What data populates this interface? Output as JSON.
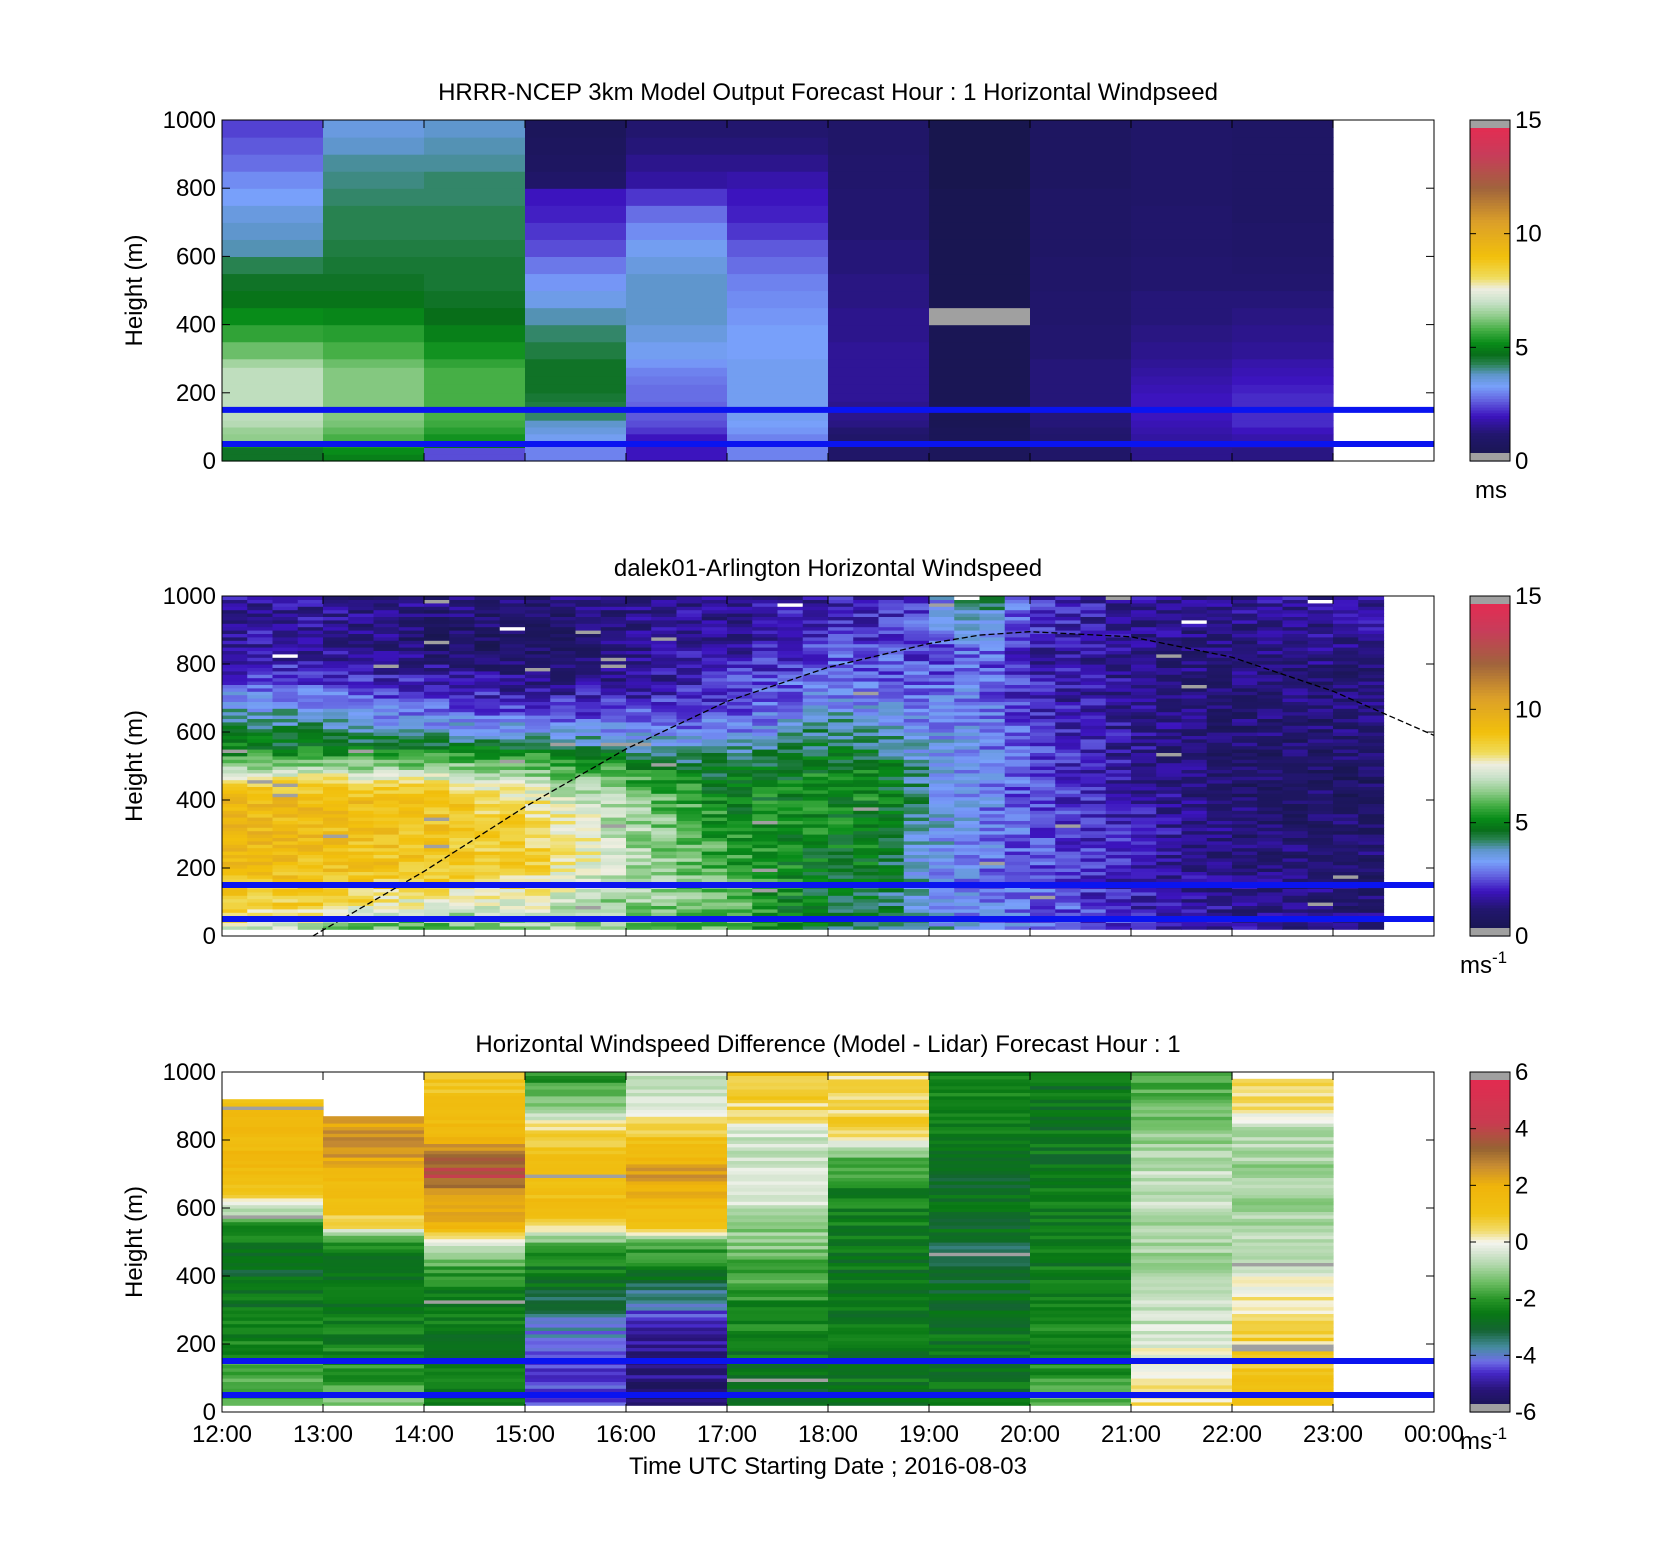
{
  "figure": {
    "xlabel": "Time UTC  Starting Date ; 2016-08-03",
    "xticks": [
      "12:00",
      "13:00",
      "14:00",
      "15:00",
      "16:00",
      "17:00",
      "18:00",
      "19:00",
      "20:00",
      "21:00",
      "22:00",
      "23:00",
      "00:00"
    ]
  },
  "colors": {
    "reference_lines": "#0a14f0",
    "solar_curve": "#000000",
    "missing_data": "#a0a0a0"
  },
  "chart_data": [
    {
      "type": "heatmap",
      "title": "HRRR-NCEP 3km Model Output   Forecast Hour : 1 Horizontal Windpseed",
      "xlabel": "",
      "ylabel": "Height (m)",
      "xlim": [
        12,
        24
      ],
      "ylim": [
        0,
        1000
      ],
      "yticks": [
        "0",
        "200",
        "400",
        "600",
        "800",
        "1000"
      ],
      "reference_lines_m": [
        150,
        50
      ],
      "colorbar": {
        "min": 0,
        "max": 15,
        "ticks": [
          "0",
          "5",
          "10",
          "15"
        ],
        "unit": "ms",
        "unit_sup": "",
        "palette": "speed"
      },
      "heights_m": [
        0,
        20,
        40,
        60,
        80,
        100,
        120,
        150,
        175,
        200,
        225,
        250,
        275,
        300,
        350,
        400,
        450,
        500,
        550,
        600,
        650,
        700,
        750,
        800,
        850,
        900,
        950,
        1000
      ],
      "hours_utc": [
        12,
        13,
        14,
        15,
        16,
        17,
        18,
        19,
        20,
        21,
        22
      ],
      "values": [
        [
          4.6,
          4.6,
          5.3,
          6.4,
          6.5,
          6.8,
          6.9,
          6.9,
          6.9,
          6.9,
          6.9,
          6.9,
          6.6,
          6.1,
          5.6,
          5.2,
          4.8,
          4.6,
          4.3,
          3.9,
          3.8,
          3.6,
          3.3,
          3.1,
          2.8,
          2.6,
          2.4
        ],
        [
          5.0,
          5.2,
          5.4,
          5.8,
          6.0,
          6.2,
          6.3,
          6.3,
          6.3,
          6.3,
          6.3,
          6.3,
          6.1,
          5.8,
          5.5,
          5.1,
          4.8,
          4.6,
          4.5,
          4.4,
          4.3,
          4.3,
          4.2,
          4.1,
          4.0,
          3.8,
          3.6
        ],
        [
          2.5,
          2.5,
          4.7,
          5.3,
          5.5,
          5.7,
          5.8,
          5.8,
          5.8,
          5.8,
          5.8,
          5.8,
          5.6,
          5.3,
          5.0,
          4.7,
          4.6,
          4.5,
          4.5,
          4.4,
          4.3,
          4.3,
          4.2,
          4.2,
          4.0,
          3.9,
          3.8
        ],
        [
          3.0,
          3.0,
          3.0,
          3.4,
          3.6,
          3.8,
          4.2,
          4.4,
          4.5,
          4.6,
          4.6,
          4.6,
          4.6,
          4.4,
          4.2,
          3.9,
          3.5,
          3.2,
          2.9,
          2.5,
          2.3,
          2.1,
          2.0,
          1.0,
          0.8,
          0.7,
          0.6
        ],
        [
          2.0,
          2.0,
          2.0,
          2.0,
          2.3,
          2.5,
          2.6,
          2.7,
          2.8,
          2.8,
          2.9,
          3.0,
          3.2,
          3.4,
          3.6,
          3.8,
          3.8,
          3.8,
          3.6,
          3.4,
          3.1,
          2.8,
          2.3,
          1.7,
          1.5,
          1.3,
          1.2
        ],
        [
          3.0,
          3.0,
          3.0,
          3.0,
          3.2,
          3.3,
          3.4,
          3.4,
          3.4,
          3.4,
          3.4,
          3.4,
          3.4,
          3.3,
          3.3,
          3.2,
          3.1,
          3.0,
          2.8,
          2.6,
          2.3,
          2.1,
          2.0,
          1.8,
          1.5,
          1.3,
          1.2
        ],
        [
          1.0,
          1.0,
          1.0,
          1.0,
          1.2,
          1.4,
          1.5,
          1.5,
          1.6,
          1.6,
          1.6,
          1.6,
          1.6,
          1.6,
          1.5,
          1.5,
          1.4,
          1.4,
          1.3,
          1.3,
          1.2,
          1.2,
          1.2,
          1.1,
          1.1,
          1.0,
          1.0
        ],
        [
          0.6,
          0.6,
          0.5,
          0.5,
          0.5,
          0.4,
          0.4,
          0.4,
          0.4,
          0.4,
          0.4,
          0.4,
          0.4,
          0.4,
          0.4,
          -1,
          0.3,
          0.3,
          0.3,
          0.3,
          0.3,
          0.3,
          0.3,
          0.2,
          0.2,
          0.2,
          0.2
        ],
        [
          1.0,
          1.0,
          1.0,
          1.1,
          1.2,
          1.3,
          1.3,
          1.3,
          1.3,
          1.3,
          1.3,
          1.3,
          1.3,
          1.2,
          1.2,
          1.1,
          1.1,
          1.0,
          1.0,
          0.9,
          0.9,
          0.9,
          0.9,
          0.8,
          0.8,
          0.8,
          0.8
        ],
        [
          1.5,
          1.5,
          1.6,
          1.7,
          1.8,
          1.9,
          2.0,
          2.0,
          2.0,
          1.9,
          1.8,
          1.7,
          1.6,
          1.5,
          1.4,
          1.3,
          1.3,
          1.2,
          1.2,
          1.1,
          1.1,
          1.1,
          1.0,
          1.0,
          1.0,
          1.0,
          1.0
        ],
        [
          1.4,
          1.4,
          1.6,
          1.8,
          2.0,
          2.2,
          2.2,
          2.2,
          2.2,
          2.1,
          2.0,
          1.9,
          1.8,
          1.6,
          1.5,
          1.4,
          1.3,
          1.2,
          1.1,
          1.0,
          1.0,
          0.9,
          0.9,
          0.9,
          0.9,
          0.9,
          0.9
        ]
      ]
    },
    {
      "type": "heatmap",
      "title": "dalek01-Arlington  Horizontal Windspeed",
      "xlabel": "",
      "ylabel": "Height (m)",
      "xlim": [
        12,
        24
      ],
      "ylim": [
        0,
        1000
      ],
      "yticks": [
        "0",
        "200",
        "400",
        "600",
        "800",
        "1000"
      ],
      "reference_lines_m": [
        150,
        50
      ],
      "colorbar": {
        "min": 0,
        "max": 15,
        "ticks": [
          "0",
          "5",
          "10",
          "15"
        ],
        "unit": "ms",
        "unit_sup": "-1",
        "palette": "speed"
      },
      "hours_utc": [
        12,
        12.5,
        13,
        13.5,
        14,
        14.5,
        15,
        15.5,
        16,
        16.5,
        17,
        17.5,
        18,
        18.5,
        19,
        19.5,
        20,
        20.5,
        21,
        21.5,
        22,
        22.5,
        23
      ],
      "profile_keyframes": {
        "heights_m": [
          20,
          100,
          200,
          300,
          400,
          450,
          500,
          550,
          600,
          650,
          700,
          750,
          800,
          850,
          900,
          950,
          1000
        ],
        "hours_utc": [
          12,
          13,
          14,
          15,
          15.5,
          16,
          17,
          18,
          18.5,
          19,
          19.5,
          20,
          21,
          22,
          23
        ],
        "values": [
          [
            7.5,
            8.5,
            9.5,
            9.5,
            9.5,
            8.5,
            6.5,
            5.0,
            4.5,
            4.0,
            3.3,
            2.6,
            2.0,
            1.8,
            1.8,
            1.6,
            1.6
          ],
          [
            6.5,
            8.5,
            9.0,
            9.2,
            9.2,
            8.3,
            6.5,
            5.0,
            4.3,
            3.6,
            3.0,
            2.4,
            2.0,
            1.8,
            1.7,
            1.6,
            1.6
          ],
          [
            5.5,
            7.5,
            8.8,
            9.0,
            9.0,
            8.0,
            6.5,
            5.0,
            3.8,
            3.0,
            2.5,
            2.0,
            1.5,
            1.0,
            1.0,
            1.2,
            1.4
          ],
          [
            6.5,
            7.5,
            8.5,
            8.5,
            8.0,
            7.2,
            6.2,
            5.0,
            3.5,
            2.8,
            2.0,
            1.5,
            1.0,
            0.8,
            0.8,
            1.0,
            1.3
          ],
          [
            6.6,
            7.0,
            7.6,
            7.8,
            7.0,
            6.4,
            5.8,
            4.5,
            3.4,
            2.6,
            2.0,
            1.5,
            1.1,
            1.0,
            1.0,
            1.2,
            1.4
          ],
          [
            6.2,
            6.5,
            6.8,
            6.8,
            6.6,
            6.0,
            5.3,
            4.2,
            3.2,
            2.6,
            2.0,
            1.6,
            1.4,
            1.3,
            1.3,
            1.4,
            1.5
          ],
          [
            6.0,
            6.0,
            5.7,
            5.5,
            5.0,
            4.8,
            4.3,
            3.8,
            3.0,
            2.6,
            2.4,
            2.2,
            2.0,
            1.8,
            1.6,
            1.6,
            1.6
          ],
          [
            4.5,
            4.5,
            4.8,
            5.0,
            5.2,
            5.2,
            5.0,
            4.6,
            4.2,
            3.6,
            3.2,
            2.8,
            2.6,
            2.4,
            2.2,
            2.0,
            1.8
          ],
          [
            4.6,
            4.5,
            4.8,
            5.0,
            5.2,
            5.2,
            5.0,
            4.5,
            4.0,
            3.5,
            3.2,
            2.8,
            2.6,
            2.4,
            2.2,
            2.0,
            1.8
          ],
          [
            3.8,
            3.5,
            3.4,
            3.6,
            3.8,
            3.8,
            3.6,
            3.4,
            3.2,
            3.0,
            2.8,
            2.6,
            2.5,
            2.4,
            2.5,
            2.6,
            2.8
          ],
          [
            3.2,
            3.0,
            3.0,
            3.1,
            3.2,
            3.2,
            3.2,
            3.2,
            3.3,
            3.2,
            3.0,
            2.9,
            2.8,
            3.0,
            3.6,
            4.5,
            4.8
          ],
          [
            3.0,
            2.8,
            2.7,
            2.6,
            2.5,
            2.5,
            2.4,
            2.4,
            2.3,
            2.2,
            2.1,
            2.0,
            2.0,
            2.0,
            2.1,
            2.2,
            2.3
          ],
          [
            2.2,
            2.0,
            2.0,
            1.9,
            1.8,
            1.7,
            1.7,
            1.6,
            1.6,
            1.5,
            1.5,
            1.5,
            1.4,
            1.4,
            1.5,
            1.6,
            1.7
          ],
          [
            1.6,
            1.6,
            1.4,
            1.3,
            1.1,
            1.0,
            1.0,
            1.0,
            1.1,
            1.1,
            1.2,
            1.2,
            1.3,
            1.3,
            1.4,
            1.5,
            1.6
          ],
          [
            1.3,
            1.2,
            1.1,
            1.0,
            0.9,
            0.9,
            0.9,
            1.0,
            1.1,
            1.1,
            1.2,
            1.2,
            1.3,
            1.4,
            1.5,
            1.6,
            1.7
          ]
        ]
      },
      "boundary_layer_height_m": {
        "hours_utc": [
          12.9,
          14,
          15,
          16,
          17,
          18,
          19,
          19.5,
          20,
          21,
          22,
          23,
          24
        ],
        "heights_m": [
          0,
          190,
          380,
          550,
          690,
          790,
          860,
          885,
          895,
          880,
          820,
          720,
          590
        ]
      }
    },
    {
      "type": "heatmap",
      "title": "Horizontal Windspeed Difference (Model - Lidar) Forecast Hour : 1",
      "xlabel": "Time UTC  Starting Date ; 2016-08-03",
      "ylabel": "Height (m)",
      "xlim": [
        12,
        24
      ],
      "ylim": [
        0,
        1000
      ],
      "yticks": [
        "0",
        "200",
        "400",
        "600",
        "800",
        "1000"
      ],
      "xticks": [
        "12:00",
        "13:00",
        "14:00",
        "15:00",
        "16:00",
        "17:00",
        "18:00",
        "19:00",
        "20:00",
        "21:00",
        "22:00",
        "23:00",
        "00:00"
      ],
      "reference_lines_m": [
        150,
        50
      ],
      "colorbar": {
        "min": -6,
        "max": 6,
        "ticks": [
          "-6",
          "-4",
          "-2",
          "0",
          "2",
          "4",
          "6"
        ],
        "unit": "ms",
        "unit_sup": "-1",
        "palette": "diff"
      },
      "profile_keyframes": {
        "heights_m": [
          20,
          100,
          200,
          300,
          400,
          450,
          500,
          550,
          600,
          650,
          700,
          750,
          800,
          850,
          900,
          950,
          1000
        ],
        "hours_utc": [
          12,
          13,
          14,
          15,
          16,
          17,
          18,
          19,
          20,
          21,
          22
        ],
        "top_of_data_m": [
          930,
          870,
          1000,
          1000,
          1000,
          1000,
          1000,
          1000,
          1000,
          1000,
          980
        ],
        "values": [
          [
            -1.5,
            -1.8,
            -2.2,
            -2.5,
            -2.8,
            -2.8,
            -2.6,
            -2.0,
            -0.5,
            1.0,
            1.4,
            1.6,
            1.5,
            1.6,
            1.4,
            null,
            null
          ],
          [
            -1.2,
            -2.0,
            -2.4,
            -2.6,
            -2.6,
            -2.6,
            -2.0,
            0.5,
            1.2,
            1.4,
            1.5,
            2.3,
            2.5,
            2.3,
            null,
            null,
            null
          ],
          [
            -2.5,
            -2.6,
            -2.5,
            -2.4,
            -2.2,
            -1.5,
            0.2,
            1.8,
            2.4,
            2.6,
            3.8,
            3.2,
            2.0,
            1.5,
            1.2,
            1.0,
            1.2
          ],
          [
            -4.5,
            -4.5,
            -4.3,
            -3.5,
            -2.5,
            -2.3,
            -1.5,
            0.5,
            1.2,
            1.4,
            1.4,
            1.2,
            0.8,
            0.0,
            -1.0,
            -1.8,
            -2.2
          ],
          [
            -5.5,
            -5.2,
            -5.0,
            -4.2,
            -2.8,
            -2.2,
            -1.6,
            1.0,
            1.5,
            2.0,
            2.4,
            1.8,
            1.2,
            0.5,
            -0.2,
            -0.5,
            -0.5
          ],
          [
            -3.0,
            -2.8,
            -2.5,
            -2.2,
            -1.8,
            -1.5,
            -1.2,
            -1.0,
            -0.6,
            -0.4,
            -0.5,
            -0.6,
            -0.5,
            0.2,
            0.4,
            0.8,
            1.0
          ],
          [
            -2.5,
            -2.6,
            -2.6,
            -2.6,
            -2.6,
            -2.6,
            -2.6,
            -2.5,
            -2.4,
            -2.3,
            -2.0,
            -1.5,
            0.0,
            0.8,
            0.5,
            0.6,
            0.4
          ],
          [
            -2.6,
            -2.6,
            -2.6,
            -2.6,
            -3.0,
            -3.2,
            -3.0,
            -2.8,
            -2.8,
            -2.8,
            -2.8,
            -2.6,
            -2.6,
            -2.6,
            -2.5,
            -2.4,
            -2.3
          ],
          [
            -1.5,
            -2.0,
            -2.3,
            -2.4,
            -2.5,
            -2.5,
            -2.5,
            -2.5,
            -2.5,
            -2.6,
            -2.6,
            -2.6,
            -2.6,
            -2.6,
            -2.6,
            -2.6,
            -2.6
          ],
          [
            0.5,
            0.3,
            -0.2,
            -0.6,
            -0.8,
            -1.0,
            -1.0,
            -0.8,
            -0.6,
            -0.5,
            -0.6,
            -0.8,
            -1.0,
            -1.2,
            -1.4,
            -1.6,
            -1.8
          ],
          [
            1.2,
            1.0,
            0.6,
            0.4,
            -0.2,
            -0.5,
            -0.8,
            -0.9,
            -1.0,
            -1.0,
            -1.0,
            -0.9,
            -0.8,
            -0.5,
            0.3,
            0.6,
            0.8
          ]
        ]
      }
    }
  ]
}
